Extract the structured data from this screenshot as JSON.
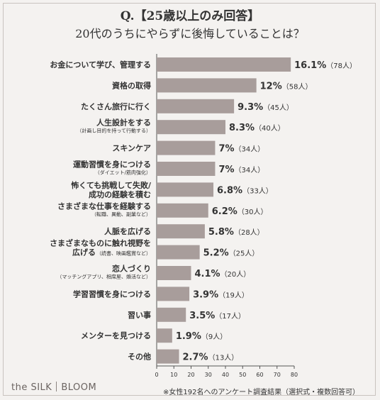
{
  "header": {
    "title": "Q.【25歳以上のみ回答】",
    "subtitle": "20代のうちにやらずに後悔していることは？"
  },
  "footer": {
    "brand_left": "the SILK",
    "brand_right": "BLOOM",
    "note": "※女性192名へのアンケート調査結果（選択式・複数回答可）"
  },
  "colors": {
    "bar": "#a89d9b",
    "background": "#f4f2f0",
    "text": "#333333"
  },
  "chart_data": {
    "type": "bar",
    "orientation": "horizontal",
    "xlim": [
      0,
      80
    ],
    "x_ticks": [
      "0",
      "10",
      "20",
      "30",
      "40",
      "50",
      "60",
      "70",
      "80"
    ],
    "categories": [
      {
        "label": "お金について学び、管理する",
        "sub": ""
      },
      {
        "label": "資格の取得",
        "sub": ""
      },
      {
        "label": "たくさん旅行に行く",
        "sub": ""
      },
      {
        "label": "人生設計をする",
        "sub": "（計画し目的を持って行動する）"
      },
      {
        "label": "スキンケア",
        "sub": ""
      },
      {
        "label": "運動習慣を身につける",
        "sub": "（ダイエット/筋肉強化）"
      },
      {
        "label": "怖くても挑戦して失敗/\n成功の経験を積む",
        "sub": ""
      },
      {
        "label": "さまざまな仕事を経験する",
        "sub": "（転職、異動、副業など）"
      },
      {
        "label": "人脈を広げる",
        "sub": ""
      },
      {
        "label": "さまざまなものに触れ視野を\n広げる",
        "sub": "（読書、映画鑑賞など）"
      },
      {
        "label": "恋人づくり",
        "sub": "（マッチングアプリ、相席屋、婚活など）"
      },
      {
        "label": "学習習慣を身につける",
        "sub": ""
      },
      {
        "label": "習い事",
        "sub": ""
      },
      {
        "label": "メンターを見つける",
        "sub": ""
      },
      {
        "label": "その他",
        "sub": ""
      }
    ],
    "values": [
      78,
      58,
      45,
      40,
      34,
      34,
      33,
      30,
      28,
      25,
      20,
      19,
      17,
      9,
      13
    ],
    "percent_labels": [
      "16.1%",
      "12%",
      "9.3%",
      "8.3%",
      "7%",
      "7%",
      "6.8%",
      "6.2%",
      "5.8%",
      "5.2%",
      "4.1%",
      "3.9%",
      "3.5%",
      "1.9%",
      "2.7%"
    ],
    "count_labels": [
      "（78人）",
      "（58人）",
      "（45人）",
      "（40人）",
      "（34人）",
      "（34人）",
      "（33人）",
      "（30人）",
      "（28人）",
      "（25人）",
      "（20人）",
      "（19人）",
      "（17人）",
      "（9人）",
      "（13人）"
    ]
  }
}
